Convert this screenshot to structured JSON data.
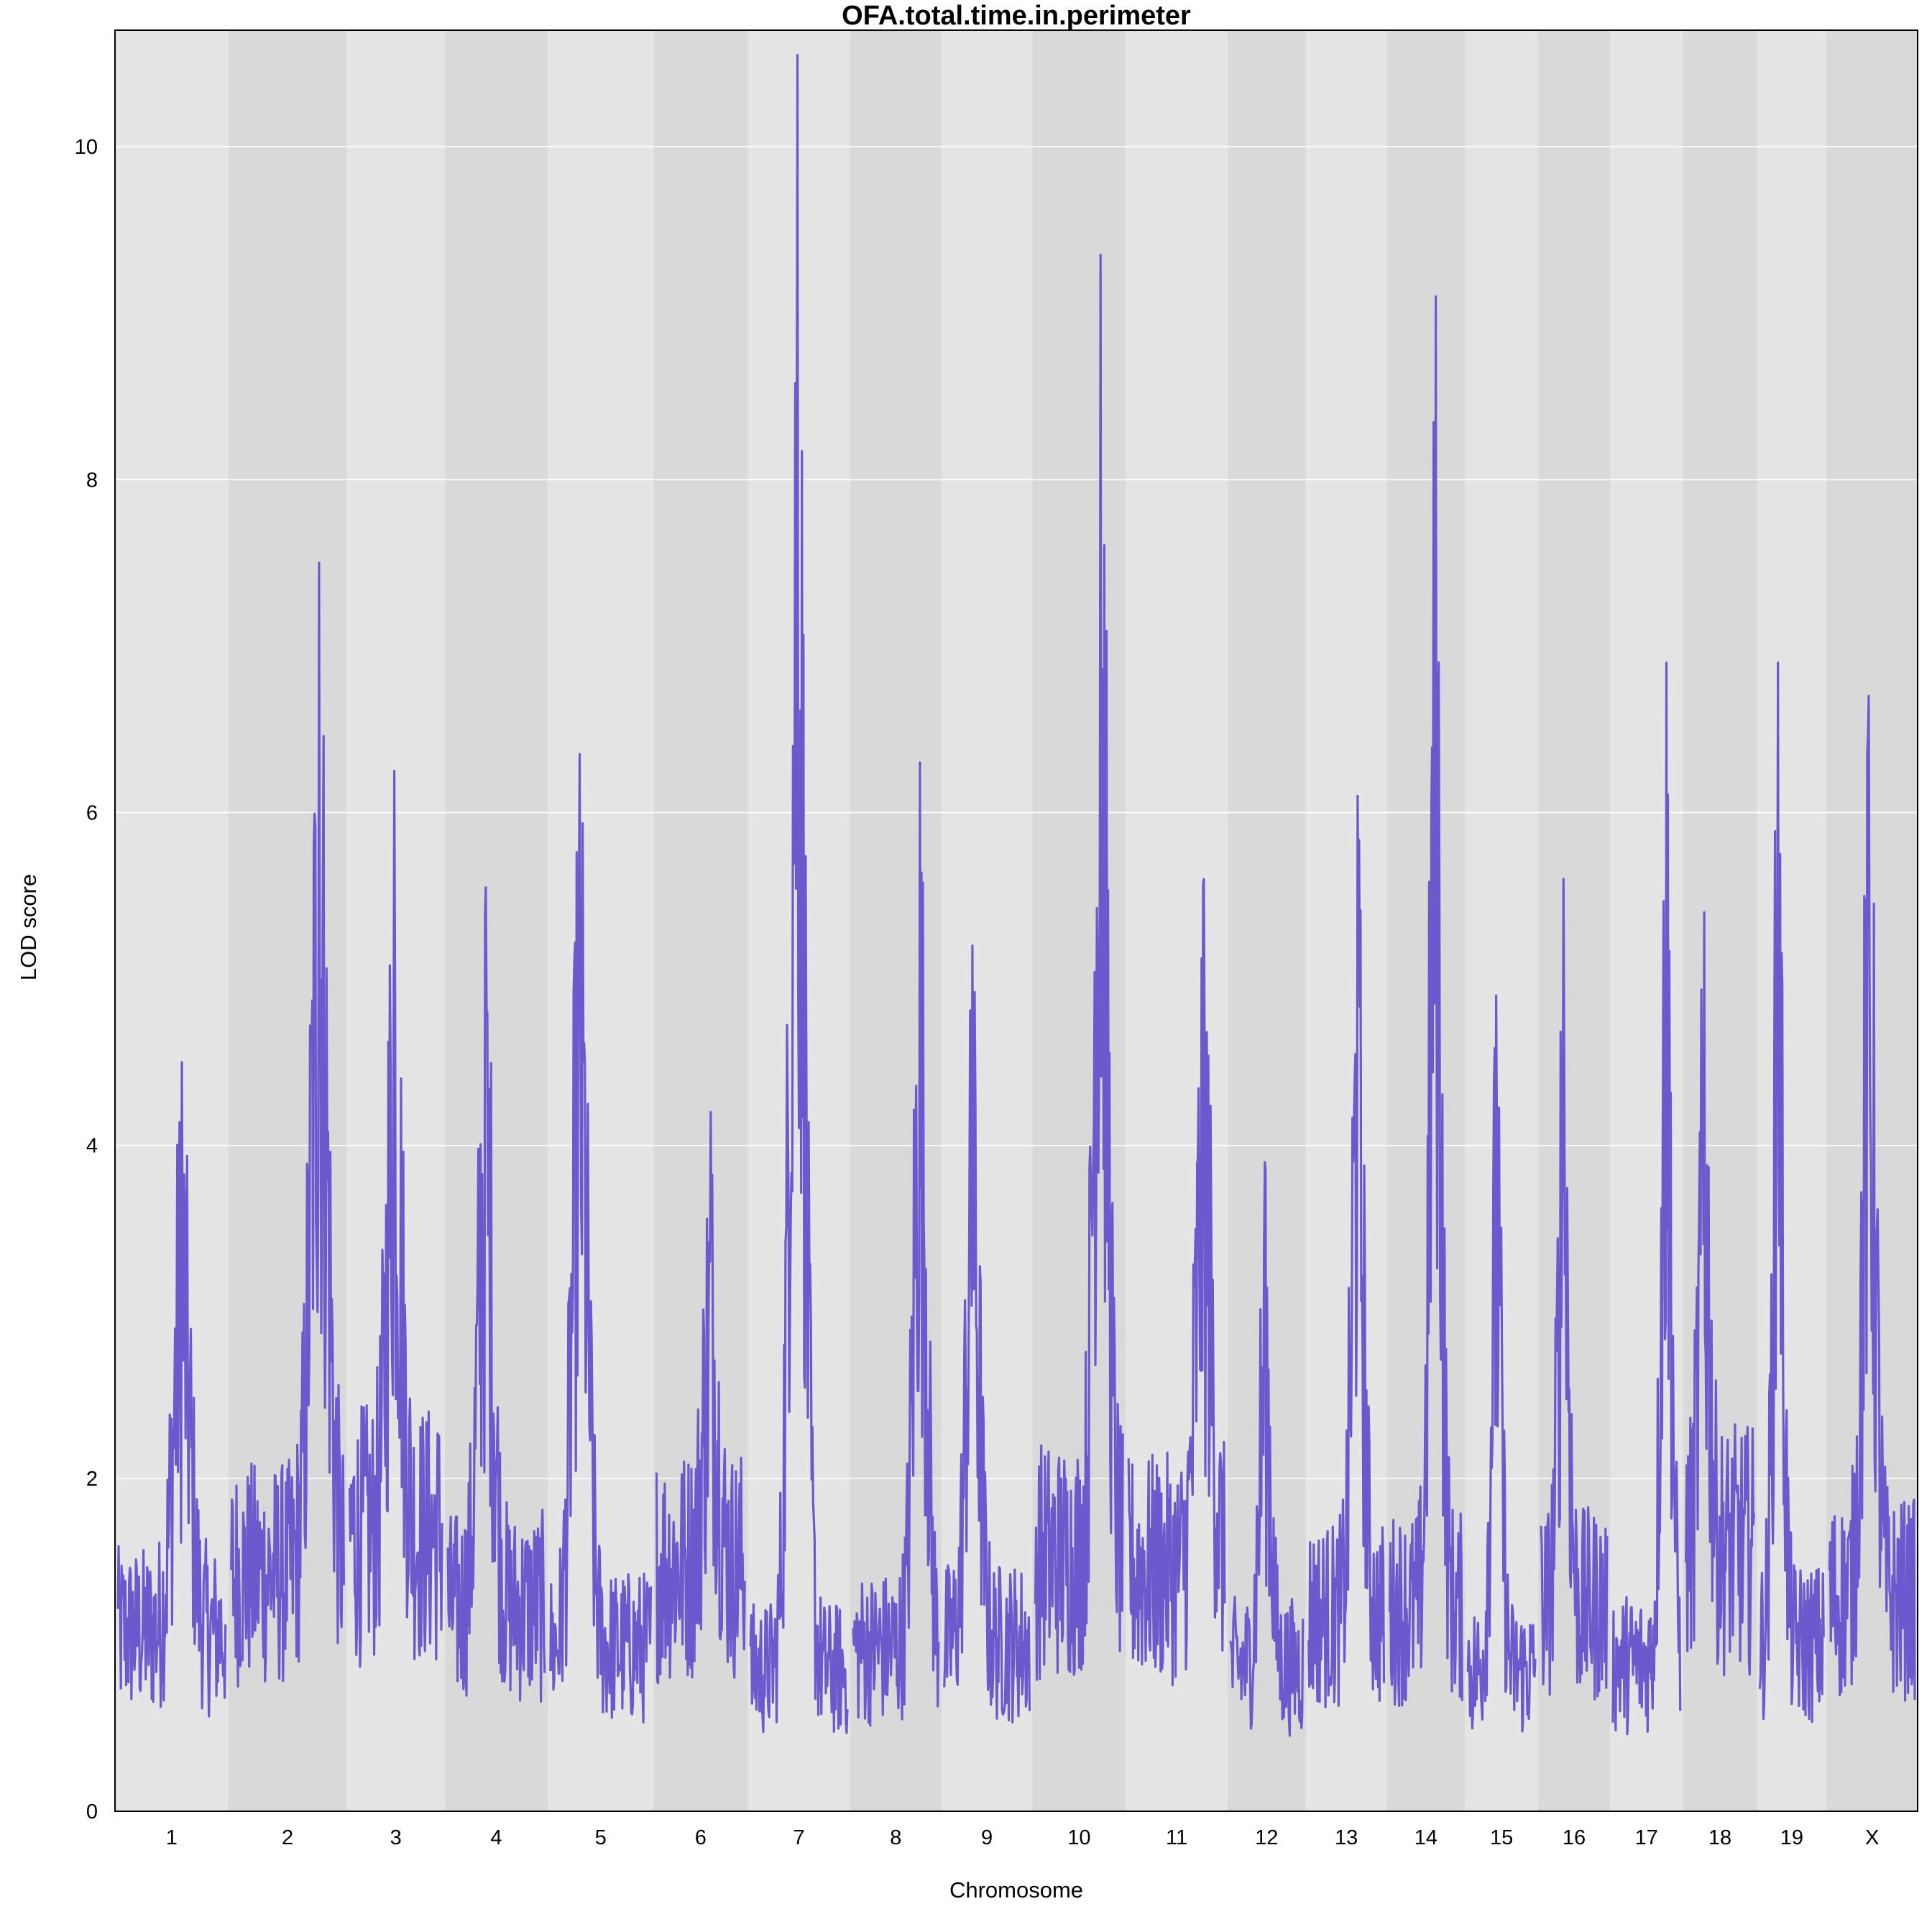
{
  "chart_data": {
    "type": "line",
    "title": "OFA.total.time.in.perimeter",
    "xlabel": "Chromosome",
    "ylabel": "LOD score",
    "ylim": [
      0,
      10.7
    ],
    "yticks": [
      0,
      2,
      4,
      6,
      8,
      10
    ],
    "grid": true,
    "line_color": "#6a5acd",
    "band_colors": [
      "#e5e5e5",
      "#d9d9d9"
    ],
    "chromosomes": [
      {
        "label": "1",
        "peak": 4.5
      },
      {
        "label": "2",
        "peak": 7.5
      },
      {
        "label": "3",
        "peak": 6.25
      },
      {
        "label": "4",
        "peak": 5.55
      },
      {
        "label": "5",
        "peak": 6.35
      },
      {
        "label": "6",
        "peak": 4.2
      },
      {
        "label": "7",
        "peak": 10.55
      },
      {
        "label": "8",
        "peak": 6.3
      },
      {
        "label": "9",
        "peak": 5.2
      },
      {
        "label": "10",
        "peak": 9.35
      },
      {
        "label": "11",
        "peak": 5.6
      },
      {
        "label": "12",
        "peak": 3.9
      },
      {
        "label": "13",
        "peak": 6.1
      },
      {
        "label": "14",
        "peak": 9.1
      },
      {
        "label": "15",
        "peak": 4.9
      },
      {
        "label": "16",
        "peak": 5.6
      },
      {
        "label": "17",
        "peak": 6.9
      },
      {
        "label": "18",
        "peak": 5.4
      },
      {
        "label": "19",
        "peak": 6.9
      },
      {
        "label": "X",
        "peak": 6.7
      }
    ]
  }
}
